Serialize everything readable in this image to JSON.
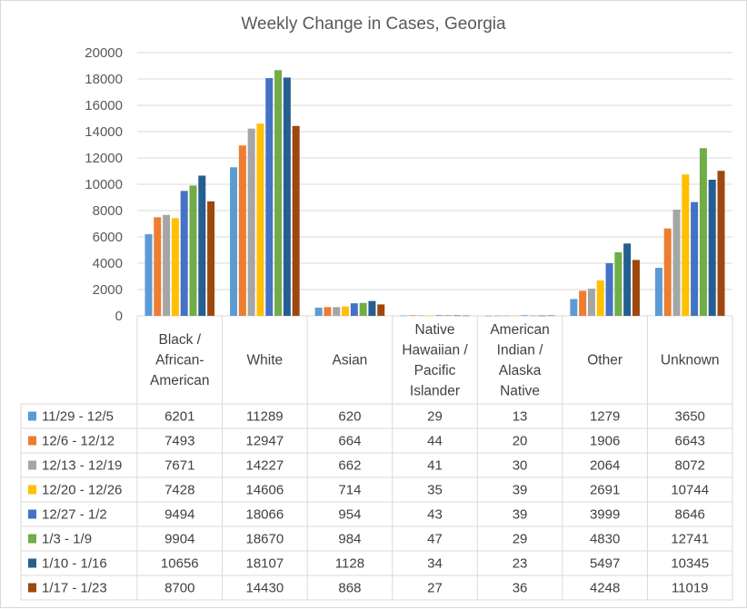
{
  "chart_data": {
    "type": "bar",
    "title": "Weekly Change in Cases, Georgia",
    "xlabel": "",
    "ylabel": "",
    "ylim": [
      0,
      20000
    ],
    "yticks": [
      "0",
      "2000",
      "4000",
      "6000",
      "8000",
      "10000",
      "12000",
      "14000",
      "16000",
      "18000",
      "20000"
    ],
    "categories": [
      [
        "Black /",
        "African-",
        "American"
      ],
      [
        "White"
      ],
      [
        "Asian"
      ],
      [
        "Native",
        "Hawaiian /",
        "Pacific",
        "Islander"
      ],
      [
        "American",
        "Indian /",
        "Alaska",
        "Native"
      ],
      [
        "Other"
      ],
      [
        "Unknown"
      ]
    ],
    "grid": true,
    "legend": "data-table",
    "series": [
      {
        "name": "11/29 - 12/5",
        "color": "#5b9bd5",
        "values": [
          6201,
          11289,
          620,
          29,
          13,
          1279,
          3650
        ]
      },
      {
        "name": "12/6 - 12/12",
        "color": "#ed7d31",
        "values": [
          7493,
          12947,
          664,
          44,
          20,
          1906,
          6643
        ]
      },
      {
        "name": "12/13 - 12/19",
        "color": "#a5a5a5",
        "values": [
          7671,
          14227,
          662,
          41,
          30,
          2064,
          8072
        ]
      },
      {
        "name": "12/20 - 12/26",
        "color": "#ffc000",
        "values": [
          7428,
          14606,
          714,
          35,
          39,
          2691,
          10744
        ]
      },
      {
        "name": "12/27 - 1/2",
        "color": "#4472c4",
        "values": [
          9494,
          18066,
          954,
          43,
          39,
          3999,
          8646
        ]
      },
      {
        "name": "1/3 - 1/9",
        "color": "#70ad47",
        "values": [
          9904,
          18670,
          984,
          47,
          29,
          4830,
          12741
        ]
      },
      {
        "name": "1/10 - 1/16",
        "color": "#255e91",
        "values": [
          10656,
          18107,
          1128,
          34,
          23,
          5497,
          10345
        ]
      },
      {
        "name": "1/17 - 1/23",
        "color": "#9e480e",
        "values": [
          8700,
          14430,
          868,
          27,
          36,
          4248,
          11019
        ]
      }
    ]
  }
}
